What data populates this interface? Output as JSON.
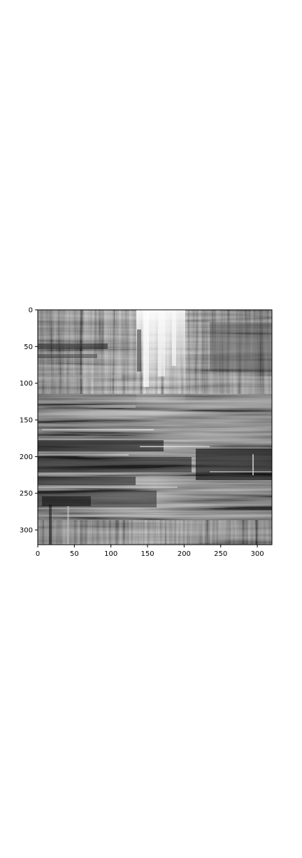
{
  "chart_data": {
    "type": "heatmap",
    "colormap": "grayscale",
    "title": "",
    "xlabel": "",
    "ylabel": "",
    "xlim": [
      0,
      320
    ],
    "ylim": [
      320,
      0
    ],
    "y_axis_inverted": true,
    "grid": false,
    "x_ticks": [
      0,
      50,
      100,
      150,
      200,
      250,
      300
    ],
    "y_ticks": [
      0,
      50,
      100,
      150,
      200,
      250,
      300
    ],
    "x_tick_labels": [
      "0",
      "50",
      "100",
      "150",
      "200",
      "250",
      "300"
    ],
    "y_tick_labels": [
      "0",
      "50",
      "100",
      "150",
      "200",
      "250",
      "300"
    ],
    "colors": {
      "background": "#ffffff",
      "axis": "#000000"
    }
  }
}
